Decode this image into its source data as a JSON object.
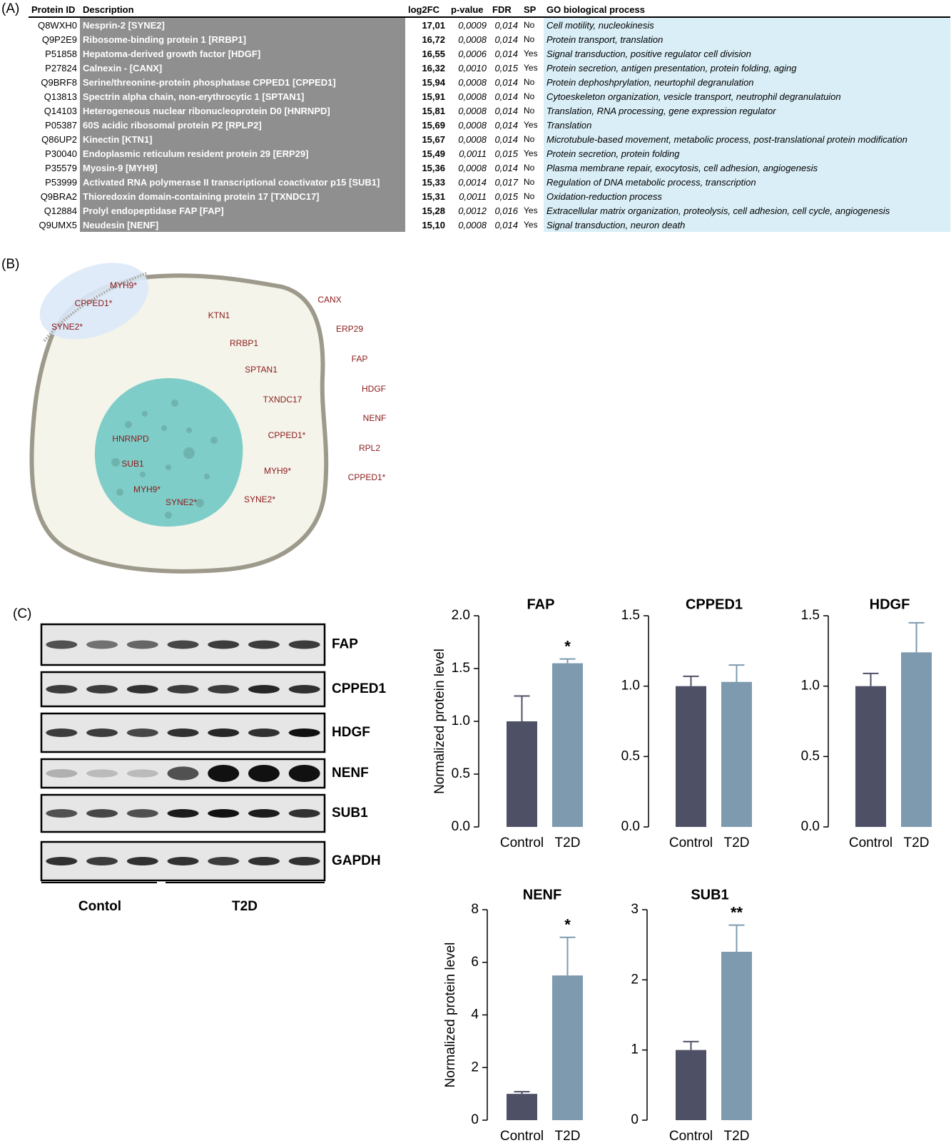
{
  "panel_labels": [
    "(A)",
    "(B)",
    "(C)"
  ],
  "table": {
    "header": [
      "Protein ID",
      "Description",
      "log2FC",
      "p-value",
      "FDR",
      "SP",
      "GO biological process"
    ],
    "rows": [
      [
        "Q8WXH0",
        "Nesprin-2  [SYNE2]",
        "17,01",
        "0,0009",
        "0,014",
        "No",
        "Cell motility, nucleokinesis"
      ],
      [
        "Q9P2E9",
        "Ribosome-binding protein 1  [RRBP1]",
        "16,72",
        "0,0008",
        "0,014",
        "No",
        "Protein transport, translation"
      ],
      [
        "P51858",
        "Hepatoma-derived growth factor [HDGF]",
        "16,55",
        "0,0006",
        "0,014",
        "Yes",
        "Signal transduction, positive regulator cell division"
      ],
      [
        "P27824",
        "Calnexin - [CANX]",
        "16,32",
        "0,0010",
        "0,015",
        "Yes",
        "Protein secretion, antigen presentation, protein folding, aging"
      ],
      [
        "Q9BRF8",
        "Serine/threonine-protein phosphatase CPPED1 [CPPED1]",
        "15,94",
        "0,0008",
        "0,014",
        "No",
        "Protein dephoshprylation, neurtophil degranulation"
      ],
      [
        "Q13813",
        "Spectrin alpha chain, non-erythrocytic 1 [SPTAN1]",
        "15,91",
        "0,0008",
        "0,014",
        "No",
        "Cytoeskeleton organization, vesicle transport, neutrophil degranulatuion"
      ],
      [
        "Q14103",
        "Heterogeneous nuclear ribonucleoprotein D0  [HNRNPD]",
        "15,81",
        "0,0008",
        "0,014",
        "No",
        "Translation, RNA processing, gene expression regulator"
      ],
      [
        "P05387",
        "60S acidic ribosomal protein P2 [RPLP2]",
        "15,69",
        "0,0008",
        "0,014",
        "Yes",
        "Translation"
      ],
      [
        "Q86UP2",
        "Kinectin  [KTN1]",
        "15,67",
        "0,0008",
        "0,014",
        "No",
        "Microtubule-based movement, metabolic process, post-translational protein modification"
      ],
      [
        "P30040",
        "Endoplasmic reticulum resident protein 29 [ERP29]",
        "15,49",
        "0,0011",
        "0,015",
        "Yes",
        "Protein secretion, protein folding"
      ],
      [
        "P35579",
        "Myosin-9  [MYH9]",
        "15,36",
        "0,0008",
        "0,014",
        "No",
        "Plasma membrane repair, exocytosis, cell adhesion, angiogenesis"
      ],
      [
        "P53999",
        "Activated RNA polymerase II transcriptional coactivator p15  [SUB1]",
        "15,33",
        "0,0014",
        "0,017",
        "No",
        "Regulation of DNA metabolic process, transcription"
      ],
      [
        "Q9BRA2",
        "Thioredoxin domain-containing protein 17  [TXNDC17]",
        "15,31",
        "0,0011",
        "0,015",
        "No",
        "Oxidation-reduction process"
      ],
      [
        "Q12884",
        "Prolyl endopeptidase FAP  [FAP]",
        "15,28",
        "0,0012",
        "0,016",
        "Yes",
        "Extracellular matrix organization, proteolysis, cell adhesion, cell cycle, angiogenesis"
      ],
      [
        "Q9UMX5",
        "Neudesin  [NENF]",
        "15,10",
        "0,0008",
        "0,014",
        "Yes",
        "Signal transduction, neuron death"
      ]
    ]
  },
  "diagram": {
    "membrane": [
      "MYH9*",
      "CPPED1*",
      "SYNE2*"
    ],
    "cytoplasm": [
      "KTN1",
      "RRBP1",
      "SPTAN1",
      "TXNDC17",
      "CPPED1*",
      "MYH9*",
      "SYNE2*"
    ],
    "nucleus": [
      "HNRNPD",
      "SUB1",
      "MYH9*",
      "SYNE2*"
    ],
    "extracellular": [
      "CANX",
      "ERP29",
      "FAP",
      "HDGF",
      "NENF",
      "RPL2",
      "CPPED1*"
    ]
  },
  "blot": {
    "rows": [
      "FAP",
      "CPPED1",
      "HDGF",
      "NENF",
      "SUB1",
      "GAPDH"
    ],
    "groups": [
      "Contol",
      "T2D"
    ]
  },
  "chart_data": [
    {
      "type": "bar",
      "title": "FAP",
      "y_label": "Normalized protein level",
      "categories": [
        "Control",
        "T2D"
      ],
      "values": [
        1.0,
        1.55
      ],
      "errors": [
        0.24,
        0.04
      ],
      "annotations": [
        null,
        "*"
      ],
      "colors": [
        "#4e5066",
        "#7e9aae"
      ],
      "ylim": [
        0,
        2
      ],
      "yticks": [
        {
          "value": 0,
          "label": "0.0"
        },
        {
          "value": 0.5,
          "label": "0.5"
        },
        {
          "value": 1,
          "label": "1.0"
        },
        {
          "value": 1.5,
          "label": "1.5"
        },
        {
          "value": 2,
          "label": "2.0"
        }
      ]
    },
    {
      "type": "bar",
      "title": "CPPED1",
      "categories": [
        "Control",
        "T2D"
      ],
      "values": [
        1.0,
        1.03
      ],
      "errors": [
        0.07,
        0.12
      ],
      "colors": [
        "#4e5066",
        "#7e9aae"
      ],
      "ylim": [
        0,
        1.5
      ],
      "yticks": [
        {
          "value": 0,
          "label": "0.0"
        },
        {
          "value": 0.5,
          "label": "0.5"
        },
        {
          "value": 1,
          "label": "1.0"
        },
        {
          "value": 1.5,
          "label": "1.5"
        }
      ]
    },
    {
      "type": "bar",
      "title": "HDGF",
      "categories": [
        "Control",
        "T2D"
      ],
      "values": [
        1.0,
        1.24
      ],
      "errors": [
        0.09,
        0.21
      ],
      "colors": [
        "#4e5066",
        "#7e9aae"
      ],
      "ylim": [
        0,
        1.5
      ],
      "yticks": [
        {
          "value": 0,
          "label": "0.0"
        },
        {
          "value": 0.5,
          "label": "0.5"
        },
        {
          "value": 1,
          "label": "1.0"
        },
        {
          "value": 1.5,
          "label": "1.5"
        }
      ]
    },
    {
      "type": "bar",
      "title": "NENF",
      "y_label": "Normalized protein level",
      "categories": [
        "Control",
        "T2D"
      ],
      "values": [
        1.0,
        5.5
      ],
      "errors": [
        0.08,
        1.45
      ],
      "annotations": [
        null,
        "*"
      ],
      "colors": [
        "#4e5066",
        "#7e9aae"
      ],
      "ylim": [
        0,
        8
      ],
      "yticks": [
        0,
        2,
        4,
        6,
        8
      ]
    },
    {
      "type": "bar",
      "title": "SUB1",
      "categories": [
        "Control",
        "T2D"
      ],
      "values": [
        1.0,
        2.4
      ],
      "errors": [
        0.12,
        0.38
      ],
      "annotations": [
        null,
        "**"
      ],
      "colors": [
        "#4e5066",
        "#7e9aae"
      ],
      "ylim": [
        0,
        3
      ],
      "yticks": [
        0,
        1,
        2,
        3
      ]
    }
  ]
}
